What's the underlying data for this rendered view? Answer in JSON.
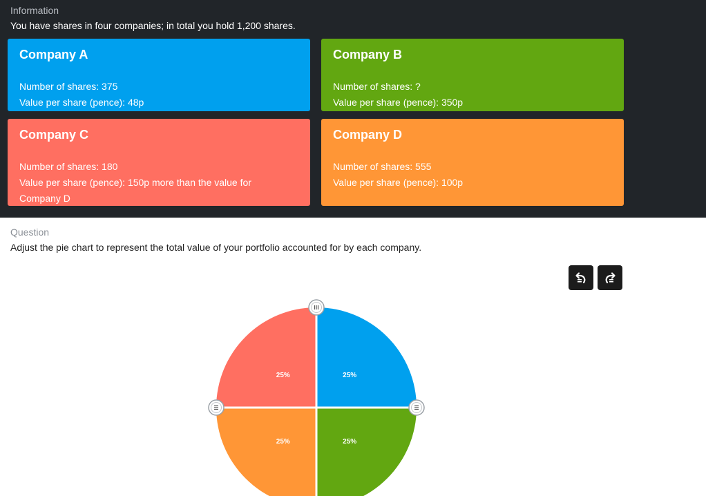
{
  "information": {
    "heading": "Information",
    "text": "You have shares in four companies; in total you hold 1,200 shares."
  },
  "companies": [
    {
      "title": "Company A",
      "shares": "Number of shares: 375",
      "value_line1": "Value per share (pence): 48p",
      "value_line2": "",
      "color": "#00a0ee"
    },
    {
      "title": "Company B",
      "shares": "Number of shares: ?",
      "value_line1": "Value per share (pence): 350p",
      "value_line2": "",
      "color": "#62a711"
    },
    {
      "title": "Company C",
      "shares": "Number of shares: 180",
      "value_line1": "Value per share (pence): 150p more than the value for",
      "value_line2": "Company D",
      "color": "#ff6f61"
    },
    {
      "title": "Company D",
      "shares": "Number of shares: 555",
      "value_line1": "Value per share (pence): 100p",
      "value_line2": "",
      "color": "#ff9636"
    }
  ],
  "question": {
    "heading": "Question",
    "text": "Adjust the pie chart to represent the total value of your portfolio accounted for by each company."
  },
  "toolbar": {
    "undo_icon": "undo-icon",
    "redo_icon": "redo-icon"
  },
  "chart_data": {
    "type": "pie",
    "slices": [
      {
        "company": "Company A",
        "value": 25,
        "label": "25%",
        "color": "#00a0ee"
      },
      {
        "company": "Company B",
        "value": 25,
        "label": "25%",
        "color": "#62a711"
      },
      {
        "company": "Company D",
        "value": 25,
        "label": "25%",
        "color": "#ff9636"
      },
      {
        "company": "Company C",
        "value": 25,
        "label": "25%",
        "color": "#ff6f61"
      }
    ]
  }
}
